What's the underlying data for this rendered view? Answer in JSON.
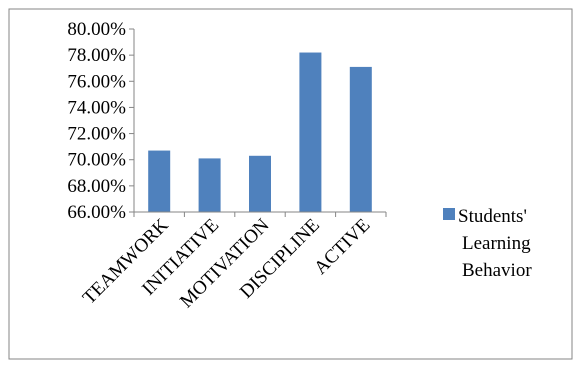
{
  "chart_data": {
    "type": "bar",
    "title": "",
    "xlabel": "",
    "ylabel": "",
    "categories": [
      "TEAMWORK",
      "INITIATIVE",
      "MOTIVATION",
      "DISCIPLINE",
      "ACTIVE"
    ],
    "series": [
      {
        "name": "Students' Learning Behavior",
        "values": [
          70.7,
          70.1,
          70.3,
          78.2,
          77.1
        ]
      }
    ],
    "ylim": [
      66,
      80
    ],
    "yticks": [
      66,
      68,
      70,
      72,
      74,
      76,
      78,
      80
    ],
    "ytick_labels": [
      "66.00%",
      "68.00%",
      "70.00%",
      "72.00%",
      "74.00%",
      "76.00%",
      "78.00%",
      "80.00%"
    ],
    "grid": false,
    "legend_position": "right",
    "colors": {
      "bar": "#4F81BD",
      "axis": "#868686",
      "frame": "#868686"
    },
    "legend": {
      "lines": [
        "Students'",
        "Learning",
        "Behavior"
      ]
    }
  }
}
